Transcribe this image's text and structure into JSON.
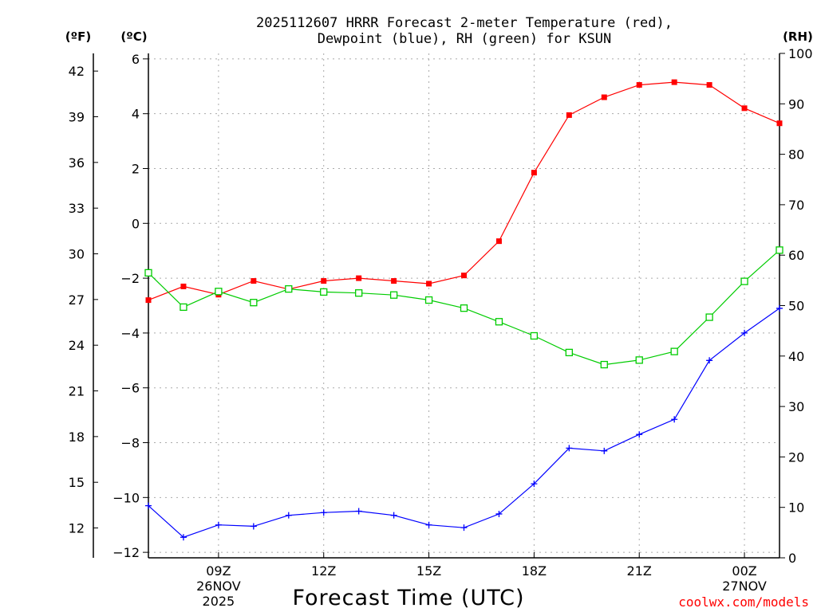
{
  "chart_data": {
    "type": "line",
    "title_line1": "2025112607 HRRR Forecast 2-meter Temperature (red),",
    "title_line2": "Dewpoint (blue), RH (green) for KSUN",
    "xlabel": "Forecast Time (UTC)",
    "unit_f": "(ºF)",
    "unit_c": "(ºC)",
    "unit_rh": "(RH)",
    "credit": "coolwx.com/models",
    "x": [
      7,
      8,
      9,
      10,
      11,
      12,
      13,
      14,
      15,
      16,
      17,
      18,
      19,
      20,
      21,
      22,
      23,
      24,
      25
    ],
    "xlim": [
      7,
      25
    ],
    "x_ticks": [
      {
        "value": 9,
        "label": "09Z",
        "sub1": "26NOV",
        "sub2": "2025"
      },
      {
        "value": 12,
        "label": "12Z"
      },
      {
        "value": 15,
        "label": "15Z"
      },
      {
        "value": 18,
        "label": "18Z"
      },
      {
        "value": 21,
        "label": "21Z"
      },
      {
        "value": 24,
        "label": "00Z",
        "sub1": "27NOV"
      }
    ],
    "c_range": [
      -12.2,
      6.2
    ],
    "c_ticks": [
      6,
      4,
      2,
      0,
      -2,
      -4,
      -6,
      -8,
      -10,
      -12
    ],
    "c_tick_labels": [
      "6",
      "4",
      "2",
      "0",
      "−2",
      "−4",
      "−6",
      "−8",
      "−10",
      "−12"
    ],
    "f_ticks": [
      42,
      39,
      36,
      33,
      30,
      27,
      24,
      21,
      18,
      15,
      12
    ],
    "rh_range": [
      0,
      100
    ],
    "rh_ticks": [
      100,
      90,
      80,
      70,
      60,
      50,
      40,
      30,
      20,
      10,
      0
    ],
    "series": [
      {
        "name": "Temperature",
        "axis": "c",
        "color": "#ff0000",
        "marker": "filled-square",
        "values": [
          -2.8,
          -2.3,
          -2.6,
          -2.1,
          -2.4,
          -2.1,
          -2.0,
          -2.1,
          -2.2,
          -1.9,
          -0.65,
          1.85,
          3.95,
          4.6,
          5.05,
          5.15,
          5.05,
          4.2,
          3.65
        ]
      },
      {
        "name": "Dewpoint",
        "axis": "c",
        "color": "#0000ff",
        "marker": "plus",
        "values": [
          -10.3,
          -11.45,
          -11.0,
          -11.05,
          -10.65,
          -10.55,
          -10.5,
          -10.65,
          -11.0,
          -11.1,
          -10.6,
          -9.5,
          -8.2,
          -8.3,
          -7.7,
          -7.15,
          -5.0,
          -4.0,
          -3.1
        ]
      },
      {
        "name": "RH",
        "axis": "rh",
        "color": "#00cc00",
        "marker": "open-square",
        "values": [
          56.5,
          49.7,
          52.8,
          50.6,
          53.3,
          52.7,
          52.5,
          52.1,
          51.1,
          49.5,
          46.8,
          44.0,
          40.7,
          38.3,
          39.2,
          40.9,
          47.7,
          54.8,
          61.0
        ]
      }
    ]
  }
}
